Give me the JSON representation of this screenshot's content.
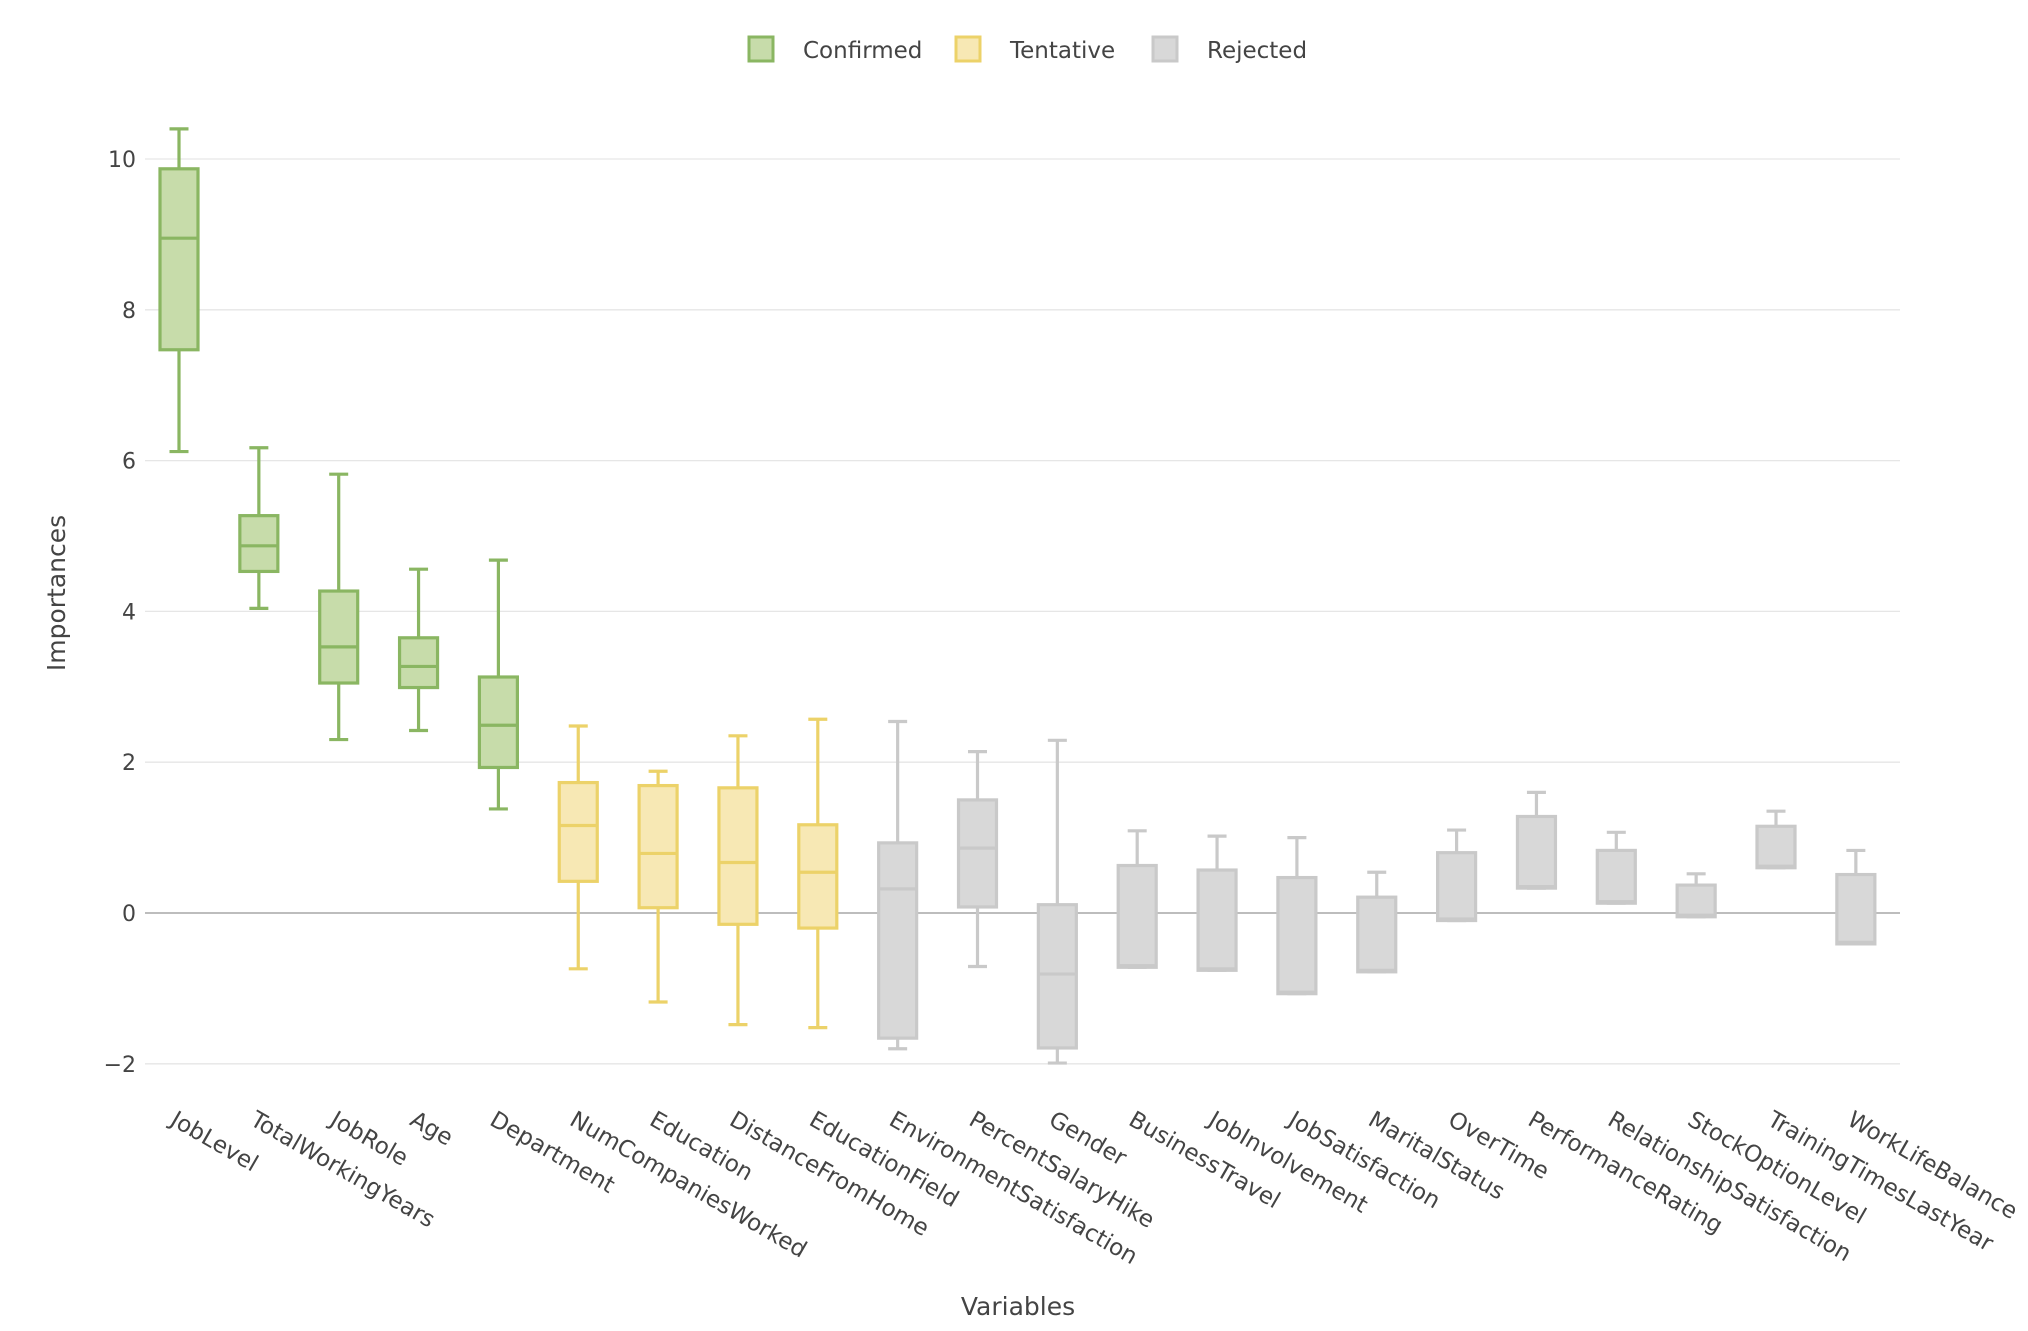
{
  "chart_data": {
    "type": "box",
    "xlabel": "Variables",
    "ylabel": "Importances",
    "ylim": [
      -2.3,
      10.9
    ],
    "yticks": [
      {
        "value": 10,
        "label": "10"
      },
      {
        "value": 8,
        "label": "8"
      },
      {
        "value": 6,
        "label": "6"
      },
      {
        "value": 4,
        "label": "4"
      },
      {
        "value": 2,
        "label": "2"
      },
      {
        "value": 0,
        "label": "0"
      },
      {
        "value": -2,
        "label": "−2"
      }
    ],
    "grid": true,
    "legend_position": "top-center",
    "legend": [
      {
        "name": "Confirmed",
        "fill": "#c7dcaa",
        "stroke": "#8ab662"
      },
      {
        "name": "Tentative",
        "fill": "#f7e8b4",
        "stroke": "#ecd269"
      },
      {
        "name": "Rejected",
        "fill": "#d8d8d8",
        "stroke": "#c9c9c9"
      }
    ],
    "categories": [
      "JobLevel",
      "TotalWorkingYears",
      "JobRole",
      "Age",
      "Department",
      "NumCompaniesWorked",
      "Education",
      "DistanceFromHome",
      "EducationField",
      "EnvironmentSatisfaction",
      "PercentSalaryHike",
      "Gender",
      "BusinessTravel",
      "JobInvolvement",
      "JobSatisfaction",
      "MaritalStatus",
      "OverTime",
      "PerformanceRating",
      "RelationshipSatisfaction",
      "StockOptionLevel",
      "TrainingTimesLastYear",
      "WorkLifeBalance"
    ],
    "boxes": [
      {
        "name": "JobLevel",
        "group": "Confirmed",
        "min": 6.12,
        "q1": 7.47,
        "median": 8.95,
        "q3": 9.87,
        "max": 10.4
      },
      {
        "name": "TotalWorkingYears",
        "group": "Confirmed",
        "min": 4.04,
        "q1": 4.53,
        "median": 4.87,
        "q3": 5.27,
        "max": 6.17
      },
      {
        "name": "JobRole",
        "group": "Confirmed",
        "min": 2.3,
        "q1": 3.05,
        "median": 3.53,
        "q3": 4.27,
        "max": 5.82
      },
      {
        "name": "Age",
        "group": "Confirmed",
        "min": 2.42,
        "q1": 2.99,
        "median": 3.27,
        "q3": 3.65,
        "max": 4.56
      },
      {
        "name": "Department",
        "group": "Confirmed",
        "min": 1.38,
        "q1": 1.93,
        "median": 2.49,
        "q3": 3.13,
        "max": 4.68
      },
      {
        "name": "NumCompaniesWorked",
        "group": "Tentative",
        "min": -0.74,
        "q1": 0.42,
        "median": 1.16,
        "q3": 1.73,
        "max": 2.48
      },
      {
        "name": "Education",
        "group": "Tentative",
        "min": -1.18,
        "q1": 0.07,
        "median": 0.79,
        "q3": 1.69,
        "max": 1.88
      },
      {
        "name": "DistanceFromHome",
        "group": "Tentative",
        "min": -1.48,
        "q1": -0.15,
        "median": 0.67,
        "q3": 1.66,
        "max": 2.35
      },
      {
        "name": "EducationField",
        "group": "Tentative",
        "min": -1.52,
        "q1": -0.2,
        "median": 0.54,
        "q3": 1.17,
        "max": 2.57
      },
      {
        "name": "EnvironmentSatisfaction",
        "group": "Rejected",
        "min": -1.8,
        "q1": -1.66,
        "median": 0.32,
        "q3": 0.93,
        "max": 2.54
      },
      {
        "name": "PercentSalaryHike",
        "group": "Rejected",
        "min": -0.71,
        "q1": 0.08,
        "median": 0.86,
        "q3": 1.5,
        "max": 2.14
      },
      {
        "name": "Gender",
        "group": "Rejected",
        "min": -1.99,
        "q1": -1.79,
        "median": -0.81,
        "q3": 0.11,
        "max": 2.29
      },
      {
        "name": "BusinessTravel",
        "group": "Rejected",
        "min": -0.72,
        "q1": -0.72,
        "median": -0.7,
        "q3": 0.63,
        "max": 1.09
      },
      {
        "name": "JobInvolvement",
        "group": "Rejected",
        "min": -0.76,
        "q1": -0.76,
        "median": -0.74,
        "q3": 0.57,
        "max": 1.02
      },
      {
        "name": "JobSatisfaction",
        "group": "Rejected",
        "min": -1.07,
        "q1": -1.07,
        "median": -1.05,
        "q3": 0.47,
        "max": 1.0
      },
      {
        "name": "MaritalStatus",
        "group": "Rejected",
        "min": -0.78,
        "q1": -0.78,
        "median": -0.76,
        "q3": 0.21,
        "max": 0.54
      },
      {
        "name": "OverTime",
        "group": "Rejected",
        "min": -0.1,
        "q1": -0.1,
        "median": -0.08,
        "q3": 0.8,
        "max": 1.1
      },
      {
        "name": "PerformanceRating",
        "group": "Rejected",
        "min": 0.33,
        "q1": 0.33,
        "median": 0.35,
        "q3": 1.28,
        "max": 1.6
      },
      {
        "name": "RelationshipSatisfaction",
        "group": "Rejected",
        "min": 0.13,
        "q1": 0.13,
        "median": 0.15,
        "q3": 0.83,
        "max": 1.07
      },
      {
        "name": "StockOptionLevel",
        "group": "Rejected",
        "min": -0.05,
        "q1": -0.05,
        "median": -0.03,
        "q3": 0.37,
        "max": 0.52
      },
      {
        "name": "TrainingTimesLastYear",
        "group": "Rejected",
        "min": 0.6,
        "q1": 0.6,
        "median": 0.62,
        "q3": 1.15,
        "max": 1.35
      },
      {
        "name": "WorkLifeBalance",
        "group": "Rejected",
        "min": -0.41,
        "q1": -0.41,
        "median": -0.39,
        "q3": 0.51,
        "max": 0.83
      }
    ]
  }
}
